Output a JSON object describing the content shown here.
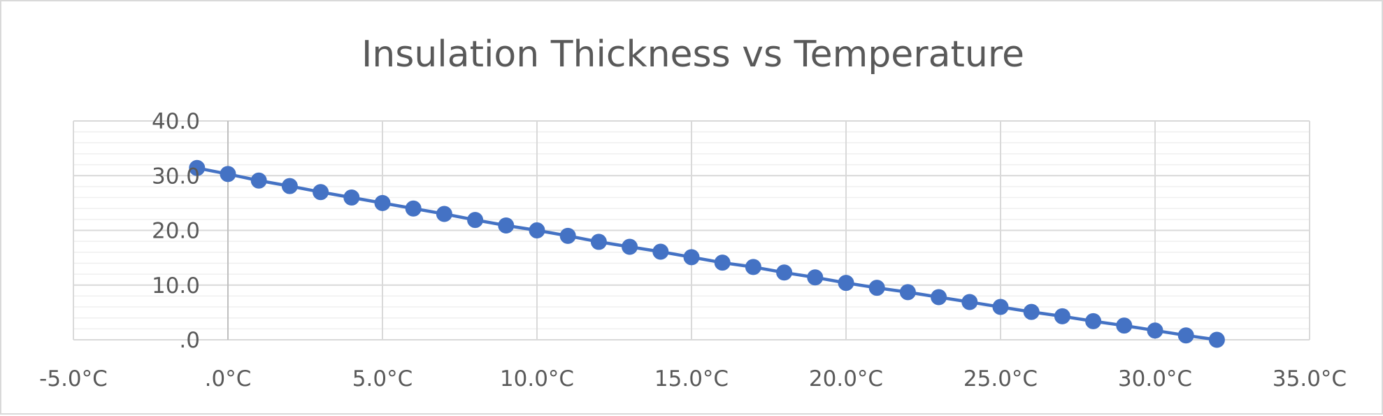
{
  "chart_data": {
    "type": "scatter",
    "title": "Insulation Thickness vs Temperature",
    "xlabel": "",
    "ylabel": "",
    "xlim": [
      -5,
      35
    ],
    "ylim": [
      0,
      40
    ],
    "x_major_step": 5,
    "y_major_step": 10,
    "y_minor_step": 2,
    "grid": true,
    "legend": "none",
    "series_color": "#4472C4",
    "x_tick_labels": [
      "-5.0°C",
      ".0°C",
      "5.0°C",
      "10.0°C",
      "15.0°C",
      "20.0°C",
      "25.0°C",
      "30.0°C",
      "35.0°C"
    ],
    "y_tick_labels": [
      ".0",
      "10.0",
      "20.0",
      "30.0",
      "40.0"
    ],
    "series": [
      {
        "x": [
          -1,
          0,
          1,
          2,
          3,
          4,
          5,
          6,
          7,
          8,
          9,
          10,
          11,
          12,
          13,
          14,
          15,
          16,
          17,
          18,
          19,
          20,
          21,
          22,
          23,
          24,
          25,
          26,
          27,
          28,
          29,
          30,
          31,
          32
        ],
        "y": [
          31.4,
          30.3,
          29.1,
          28.1,
          27.0,
          26.0,
          25.0,
          24.0,
          23.0,
          21.9,
          20.9,
          20.0,
          19.0,
          17.9,
          17.0,
          16.1,
          15.1,
          14.1,
          13.3,
          12.3,
          11.4,
          10.4,
          9.5,
          8.7,
          7.8,
          6.9,
          6.0,
          5.1,
          4.3,
          3.4,
          2.6,
          1.7,
          0.8,
          0.0
        ]
      }
    ]
  }
}
